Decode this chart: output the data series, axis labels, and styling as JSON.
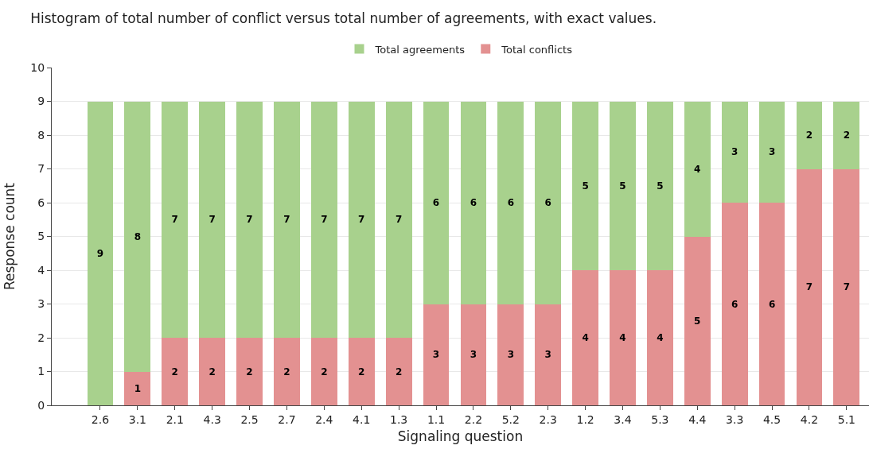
{
  "chart_data": {
    "type": "bar",
    "stacked": true,
    "title": "Histogram of total number of conflict versus total number of agreements, with exact values.",
    "xlabel": "Signaling question",
    "ylabel": "Response count",
    "categories": [
      "2.6",
      "3.1",
      "2.1",
      "4.3",
      "2.5",
      "2.7",
      "2.4",
      "4.1",
      "1.3",
      "1.1",
      "2.2",
      "5.2",
      "2.3",
      "1.2",
      "3.4",
      "5.3",
      "4.4",
      "3.3",
      "4.5",
      "4.2",
      "5.1"
    ],
    "series": [
      {
        "name": "Total conflicts",
        "color": "#e39191",
        "values": [
          0,
          1,
          2,
          2,
          2,
          2,
          2,
          2,
          2,
          3,
          3,
          3,
          3,
          4,
          4,
          4,
          5,
          6,
          6,
          7,
          7
        ],
        "value_labels": [
          null,
          "1",
          "2",
          "2",
          "2",
          "2",
          "2",
          "2",
          "2",
          "3",
          "3",
          "3",
          "3",
          "4",
          "4",
          "4",
          "5",
          "6",
          "6",
          "7",
          "7"
        ]
      },
      {
        "name": "Total agreements",
        "color": "#a8d18d",
        "values": [
          9,
          8,
          7,
          7,
          7,
          7,
          7,
          7,
          7,
          6,
          6,
          6,
          6,
          5,
          5,
          5,
          4,
          3,
          3,
          2,
          2
        ],
        "value_labels": [
          "9",
          "8",
          "7",
          "7",
          "7",
          "7",
          "7",
          "7",
          "7",
          "6",
          "6",
          "6",
          "6",
          "5",
          "5",
          "5",
          "4",
          "3",
          "3",
          "2",
          "2"
        ]
      }
    ],
    "ylim": [
      0,
      10
    ],
    "yticks": [
      0,
      1,
      2,
      3,
      4,
      5,
      6,
      7,
      8,
      9,
      10
    ],
    "grid": "y",
    "legend": "top"
  }
}
